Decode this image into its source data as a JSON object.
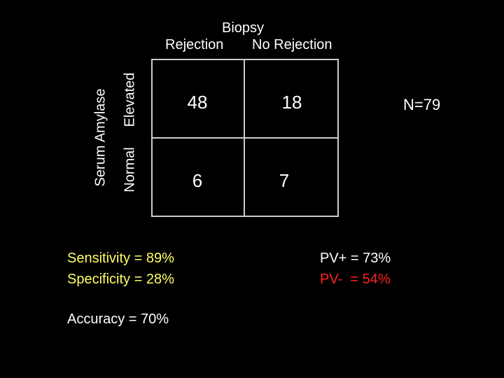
{
  "header": {
    "title": "Biopsy",
    "col_rejection": "Rejection",
    "col_no_rejection": "No Rejection"
  },
  "rows": {
    "axis_label": "Serum Amylase",
    "elevated": "Elevated",
    "normal": "Normal"
  },
  "cells": {
    "elevated_rejection": "48",
    "elevated_no_rejection": "18",
    "normal_rejection": "6",
    "normal_no_rejection": "7"
  },
  "total": "N=79",
  "stats": {
    "sensitivity": "Sensitivity = 89%",
    "specificity": "Specificity = 28%",
    "accuracy": "Accuracy = 70%",
    "pv_positive": "PV+ = 73%",
    "pv_negative": "PV-  = 54%"
  },
  "colors": {
    "background": "#000000",
    "text": "#ffffff",
    "highlight_yellow": "#ffff66",
    "highlight_red": "#ff2222",
    "grid_lines": "#cccccc"
  }
}
